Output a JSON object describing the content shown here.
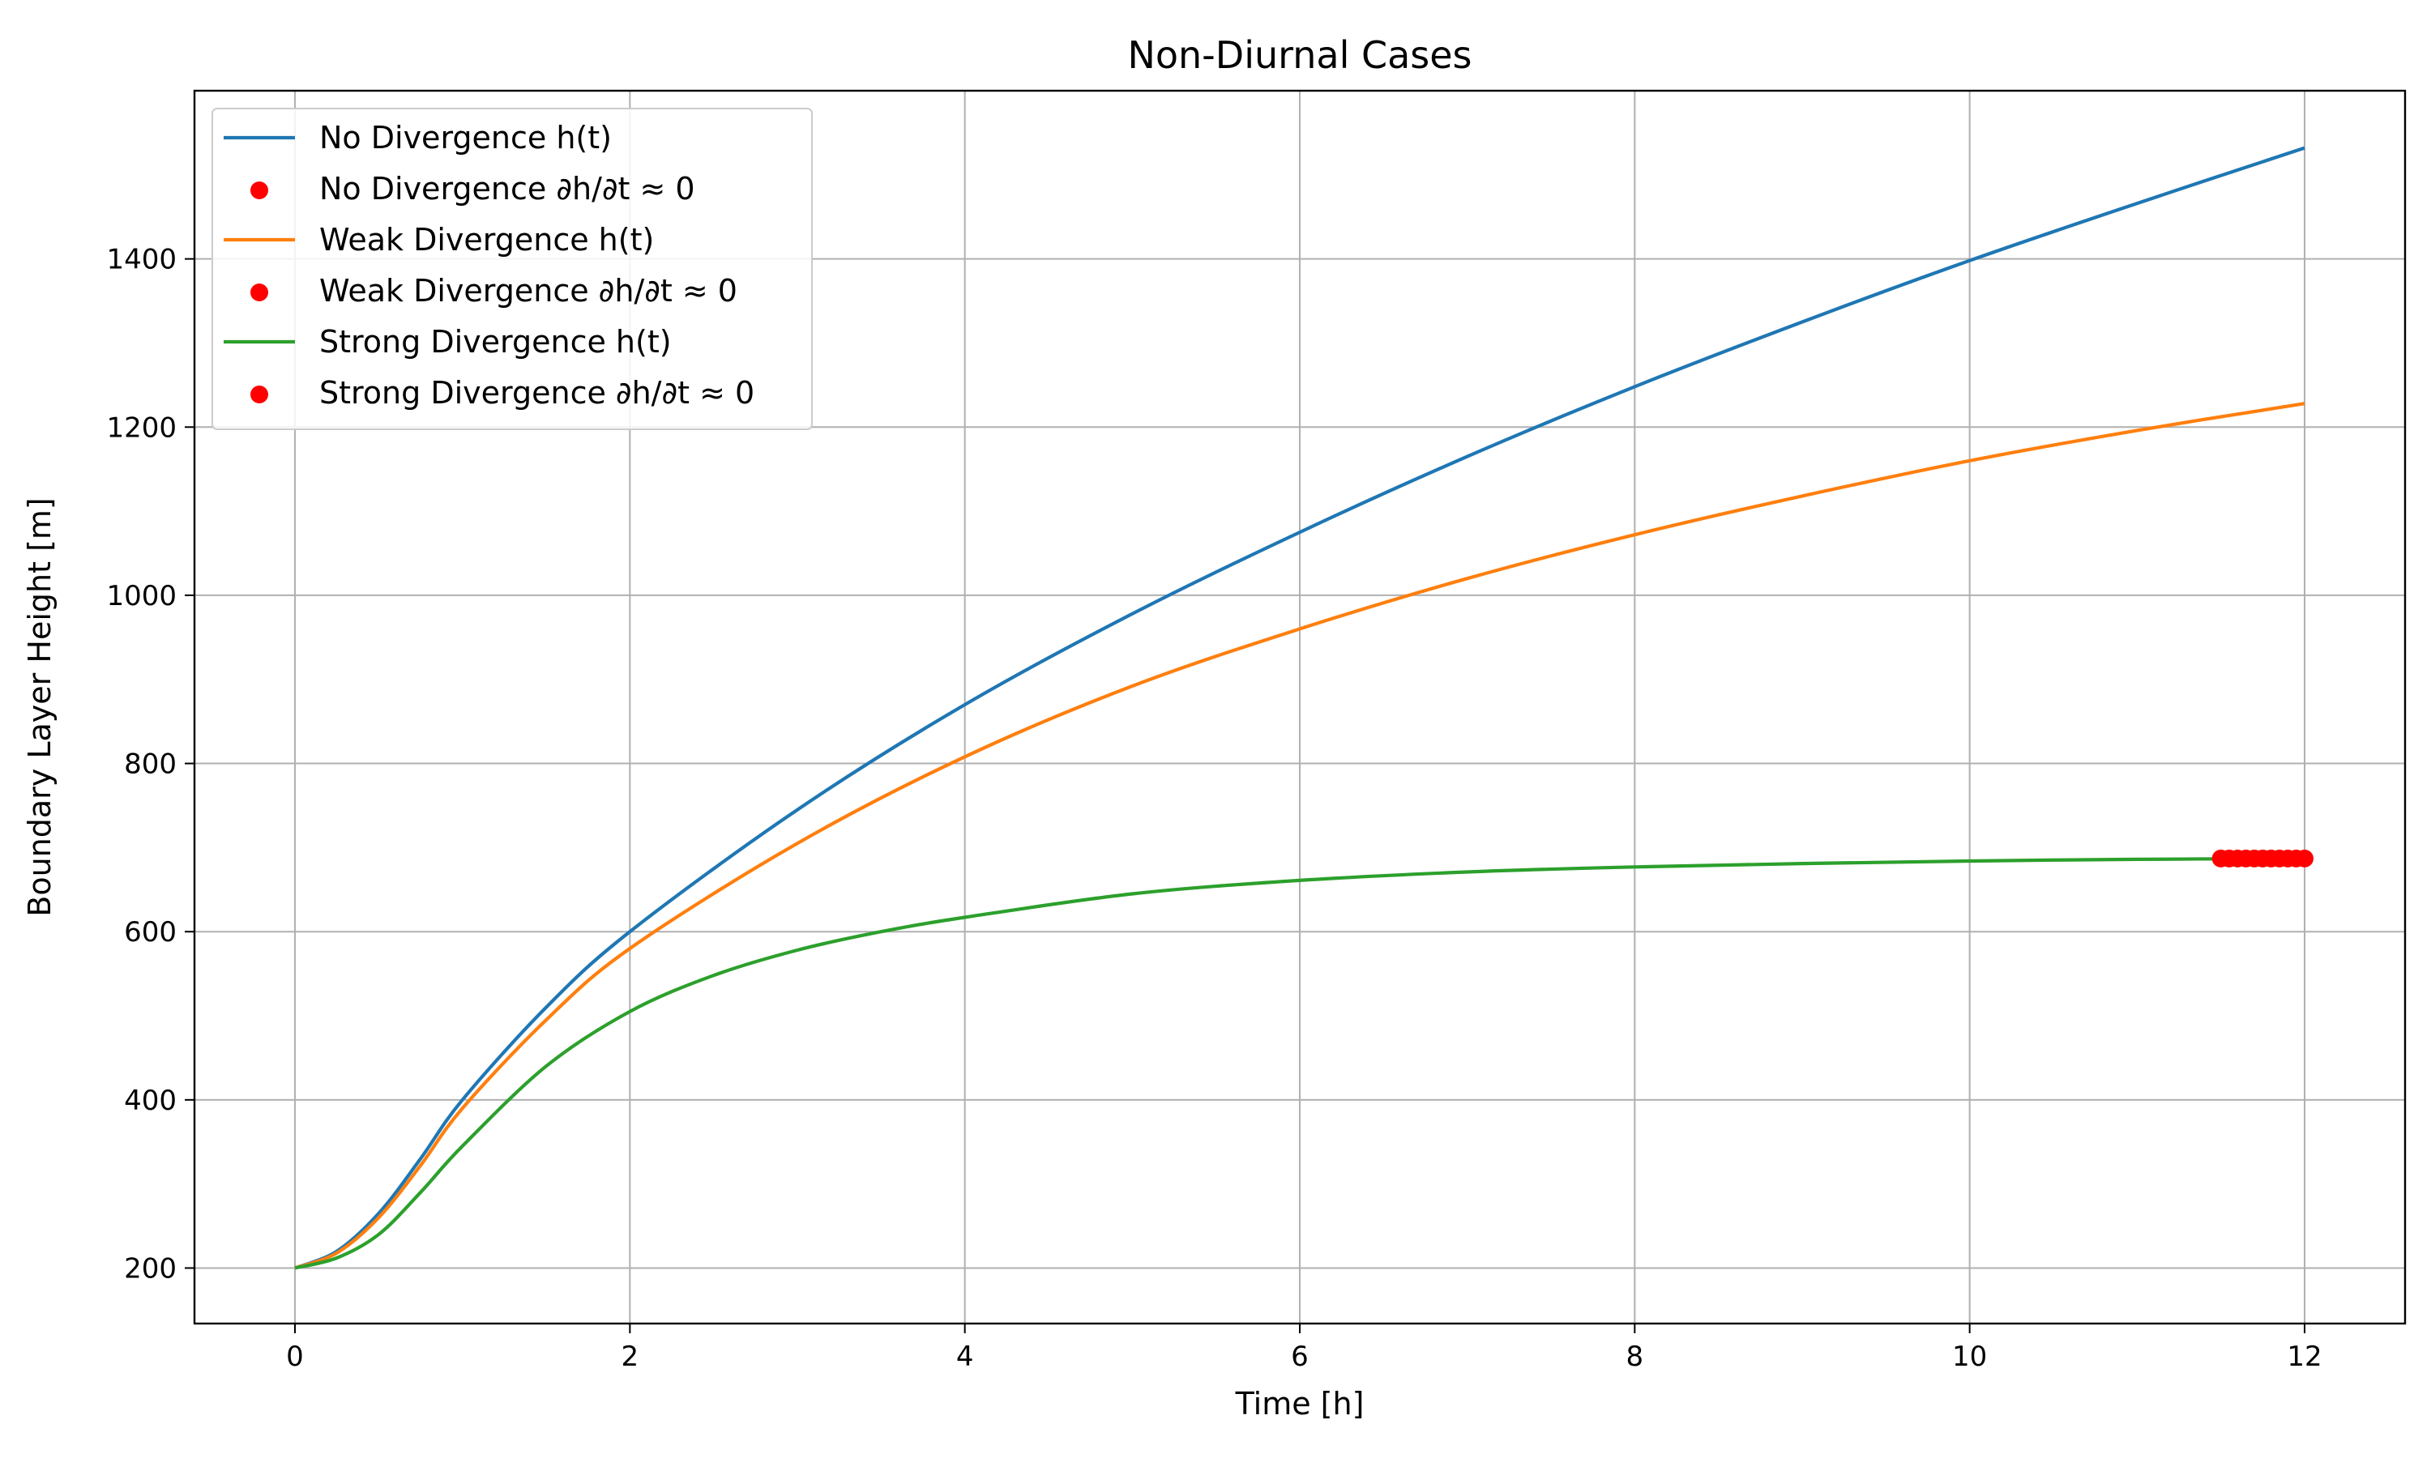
{
  "chart_data": {
    "type": "line",
    "title": "Non-Diurnal Cases",
    "xlabel": "Time [h]",
    "ylabel": "Boundary Layer Height [m]",
    "xlim": [
      -0.6,
      12.6
    ],
    "ylim": [
      134,
      1600
    ],
    "xticks": [
      0,
      2,
      4,
      6,
      8,
      10,
      12
    ],
    "yticks": [
      200,
      400,
      600,
      800,
      1000,
      1200,
      1400
    ],
    "grid": true,
    "legend_position": "upper-left",
    "series": [
      {
        "name": "No Divergence h(t)",
        "kind": "line",
        "color": "#1f77b4",
        "x": [
          0,
          0.25,
          0.5,
          0.75,
          1,
          1.5,
          2,
          3,
          4,
          5,
          6,
          7,
          8,
          9,
          10,
          11,
          12
        ],
        "y": [
          200,
          220,
          265,
          330,
          400,
          510,
          600,
          745,
          870,
          978,
          1075,
          1165,
          1248,
          1325,
          1398,
          1466,
          1532
        ]
      },
      {
        "name": "No Divergence ∂h/∂t ≈ 0",
        "kind": "scatter",
        "color": "#ff0000",
        "x": [],
        "y": []
      },
      {
        "name": "Weak Divergence h(t)",
        "kind": "line",
        "color": "#ff7f0e",
        "x": [
          0,
          0.25,
          0.5,
          0.75,
          1,
          1.5,
          2,
          3,
          4,
          5,
          6,
          7,
          8,
          9,
          10,
          11,
          12
        ],
        "y": [
          200,
          218,
          260,
          322,
          390,
          495,
          580,
          705,
          808,
          892,
          960,
          1020,
          1072,
          1118,
          1160,
          1196,
          1228
        ]
      },
      {
        "name": "Weak Divergence ∂h/∂t ≈ 0",
        "kind": "scatter",
        "color": "#ff0000",
        "x": [],
        "y": []
      },
      {
        "name": "Strong Divergence h(t)",
        "kind": "line",
        "color": "#2ca02c",
        "x": [
          0,
          0.25,
          0.5,
          0.75,
          1,
          1.5,
          2,
          2.5,
          3,
          3.5,
          4,
          5,
          6,
          7,
          8,
          9,
          10,
          11,
          12
        ],
        "y": [
          200,
          212,
          240,
          290,
          345,
          440,
          505,
          548,
          578,
          600,
          617,
          645,
          661,
          671,
          677,
          681,
          684,
          686,
          687
        ]
      },
      {
        "name": "Strong Divergence ∂h/∂t ≈ 0",
        "kind": "scatter",
        "color": "#ff0000",
        "x": [
          11.5,
          11.55,
          11.6,
          11.65,
          11.7,
          11.75,
          11.8,
          11.85,
          11.9,
          11.95,
          12.0
        ],
        "y": [
          687,
          687,
          687,
          687,
          687,
          687,
          687,
          687,
          687,
          687,
          687
        ]
      }
    ]
  }
}
